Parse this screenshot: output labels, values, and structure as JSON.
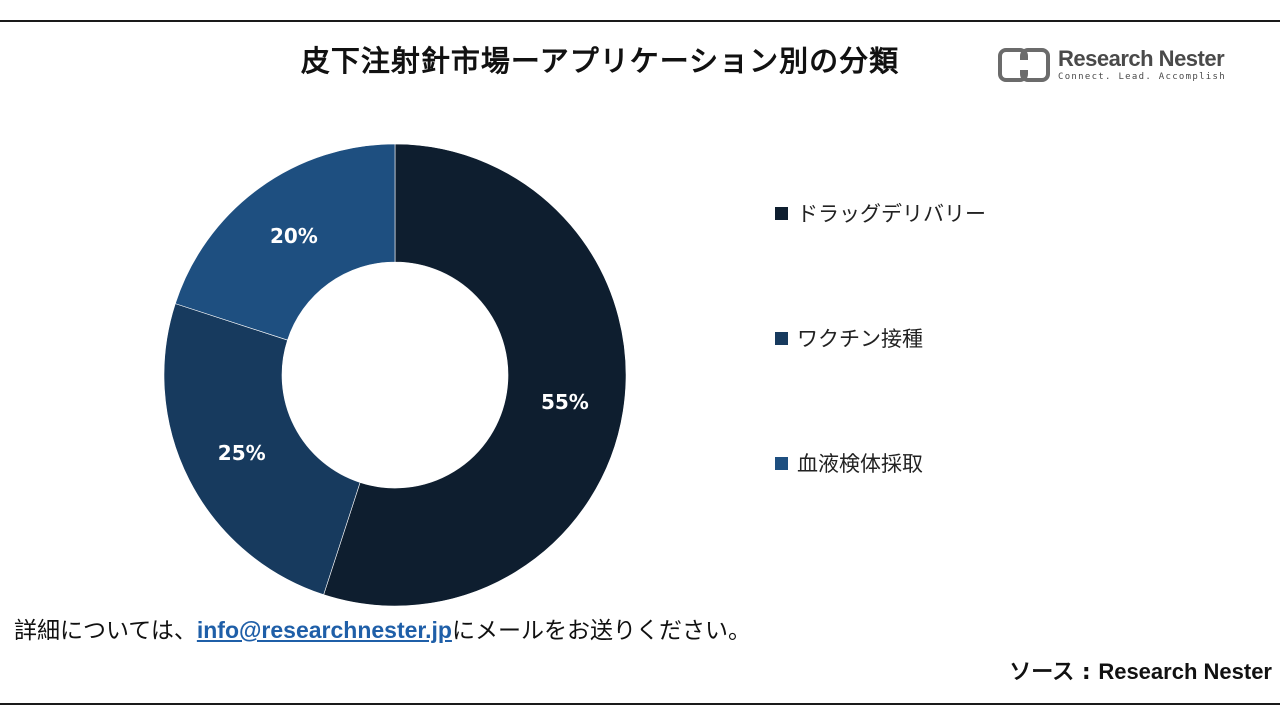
{
  "header": {
    "title": "皮下注射針市場ーアプリケーション別の分類",
    "logo": {
      "name": "Research Nester",
      "tagline": "Connect. Lead. Accomplish",
      "icon": "research-nester-logo-icon",
      "color": "#4a4a4a"
    }
  },
  "chart_data": {
    "type": "pie",
    "variant": "donut",
    "title": "皮下注射針市場ーアプリケーション別の分類",
    "categories": [
      "ドラッグデリバリー",
      "ワクチン接種",
      "血液検体採取"
    ],
    "values": [
      55,
      25,
      20
    ],
    "labels": [
      "55%",
      "25%",
      "20%"
    ],
    "colors": [
      "#0e1e2f",
      "#173a5e",
      "#1e4f80"
    ],
    "legend_position": "right"
  },
  "footer": {
    "note_prefix": "詳細については、",
    "email": "info@researchnester.jp",
    "note_suffix": "にメールをお送りください。",
    "source_label": "ソース  : ",
    "source_name": "Research Nester",
    "link_color": "#1f5fa8"
  }
}
